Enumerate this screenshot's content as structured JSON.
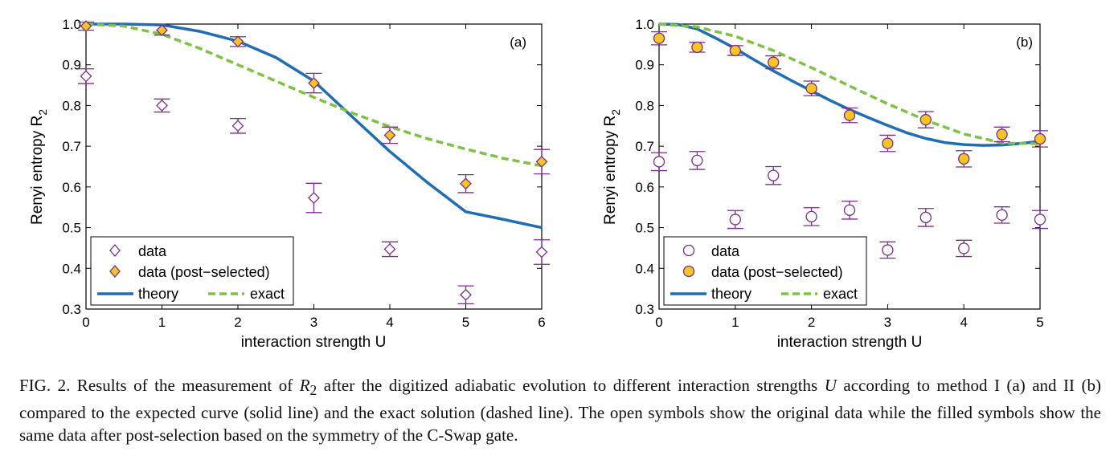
{
  "chart_data": [
    {
      "type": "scatter",
      "panel_label": "(a)",
      "xlabel": "interaction strength U",
      "ylabel": "Renyi entropy R",
      "ylabel_sub": "2",
      "xlim": [
        0,
        6
      ],
      "ylim": [
        0.3,
        1.0
      ],
      "xticks": [
        0,
        1,
        2,
        3,
        4,
        5,
        6
      ],
      "yticks": [
        0.3,
        0.4,
        0.5,
        0.6,
        0.7,
        0.8,
        0.9,
        1.0
      ],
      "ytick_labels": [
        "0.3",
        "0.4",
        "0.5",
        "0.6",
        "0.7",
        "0.8",
        "0.9",
        "1.0"
      ],
      "marker": "diamond",
      "series": [
        {
          "name": "data",
          "kind": "open",
          "color": "#7b2d8e",
          "x": [
            0,
            1,
            2,
            3,
            4,
            5,
            6
          ],
          "y": [
            0.872,
            0.8,
            0.75,
            0.573,
            0.447,
            0.335,
            0.44
          ],
          "err": [
            0.018,
            0.016,
            0.018,
            0.036,
            0.018,
            0.022,
            0.03
          ]
        },
        {
          "name": "data (post−selected)",
          "kind": "filled",
          "color": "#7b2d8e",
          "fill": "#f6c51f",
          "x": [
            0,
            1,
            2,
            3,
            4,
            5,
            6
          ],
          "y": [
            0.995,
            0.985,
            0.957,
            0.855,
            0.727,
            0.608,
            0.662
          ],
          "err": [
            0.01,
            0.012,
            0.012,
            0.024,
            0.02,
            0.022,
            0.03
          ]
        },
        {
          "name": "theory",
          "kind": "solid",
          "color": "#1f6eb4",
          "x": [
            0,
            0.5,
            1,
            1.5,
            2,
            2.5,
            3,
            3.5,
            4,
            4.5,
            5,
            5.5,
            6
          ],
          "y": [
            1.0,
            1.0,
            0.998,
            0.982,
            0.958,
            0.918,
            0.86,
            0.773,
            0.687,
            0.61,
            0.539,
            0.52,
            0.5
          ]
        },
        {
          "name": "exact",
          "kind": "dashed",
          "color": "#7dc242",
          "x": [
            0,
            0.5,
            1,
            1.5,
            2,
            2.5,
            3,
            3.5,
            4,
            4.5,
            5,
            5.5,
            6
          ],
          "y": [
            1.0,
            0.995,
            0.975,
            0.94,
            0.9,
            0.86,
            0.82,
            0.782,
            0.748,
            0.718,
            0.693,
            0.67,
            0.652
          ]
        }
      ],
      "legend": "bottom-left"
    },
    {
      "type": "scatter",
      "panel_label": "(b)",
      "xlabel": "interaction strength U",
      "ylabel": "Renyi entropy R",
      "ylabel_sub": "2",
      "xlim": [
        0,
        5
      ],
      "ylim": [
        0.3,
        1.0
      ],
      "xticks": [
        0,
        1,
        2,
        3,
        4,
        5
      ],
      "yticks": [
        0.3,
        0.4,
        0.5,
        0.6,
        0.7,
        0.8,
        0.9,
        1.0
      ],
      "ytick_labels": [
        "0.3",
        "0.4",
        "0.5",
        "0.6",
        "0.7",
        "0.8",
        "0.9",
        "1.0"
      ],
      "marker": "circle",
      "series": [
        {
          "name": "data",
          "kind": "open",
          "color": "#7b2d8e",
          "x": [
            0,
            0.5,
            1,
            1.5,
            2,
            2.5,
            3,
            3.5,
            4,
            4.5,
            5
          ],
          "y": [
            0.662,
            0.665,
            0.52,
            0.628,
            0.527,
            0.543,
            0.445,
            0.525,
            0.449,
            0.531,
            0.52
          ],
          "err": [
            0.022,
            0.022,
            0.022,
            0.022,
            0.022,
            0.022,
            0.02,
            0.022,
            0.02,
            0.02,
            0.022
          ]
        },
        {
          "name": "data (post−selected)",
          "kind": "filled",
          "color": "#7b2d8e",
          "fill": "#f6c51f",
          "x": [
            0,
            0.5,
            1,
            1.5,
            2,
            2.5,
            3,
            3.5,
            4,
            4.5,
            5
          ],
          "y": [
            0.965,
            0.943,
            0.935,
            0.906,
            0.842,
            0.776,
            0.707,
            0.765,
            0.669,
            0.729,
            0.718
          ],
          "err": [
            0.016,
            0.012,
            0.012,
            0.016,
            0.018,
            0.018,
            0.02,
            0.02,
            0.02,
            0.018,
            0.02
          ]
        },
        {
          "name": "theory",
          "kind": "solid",
          "color": "#1f6eb4",
          "x": [
            0,
            0.25,
            0.5,
            0.75,
            1,
            1.25,
            1.5,
            1.75,
            2,
            2.25,
            2.5,
            2.75,
            3,
            3.25,
            3.5,
            3.75,
            4,
            4.25,
            4.5,
            4.75,
            5
          ],
          "y": [
            1.0,
            0.999,
            0.988,
            0.965,
            0.94,
            0.912,
            0.885,
            0.86,
            0.836,
            0.812,
            0.79,
            0.77,
            0.751,
            0.733,
            0.719,
            0.709,
            0.704,
            0.702,
            0.703,
            0.707,
            0.712
          ]
        },
        {
          "name": "exact",
          "kind": "dashed",
          "color": "#7dc242",
          "x": [
            0,
            0.5,
            1,
            1.5,
            2,
            2.5,
            3,
            3.5,
            4,
            4.5,
            5
          ],
          "y": [
            1.0,
            0.993,
            0.97,
            0.935,
            0.893,
            0.848,
            0.804,
            0.764,
            0.73,
            0.708,
            0.706
          ]
        }
      ],
      "legend": "bottom-left"
    }
  ],
  "caption": {
    "prefix": "FIG. 2. Results of the measurement of ",
    "var": "R",
    "var_sub": "2",
    "middle": " after the digitized adiabatic evolution to different interaction strengths ",
    "var2": "U",
    "rest": " according to method I (a) and II (b) compared to the expected curve (solid line) and the exact solution (dashed line). The open symbols show the original data while the filled symbols show the same data after post-selection based on the symmetry of the C-Swap gate."
  }
}
